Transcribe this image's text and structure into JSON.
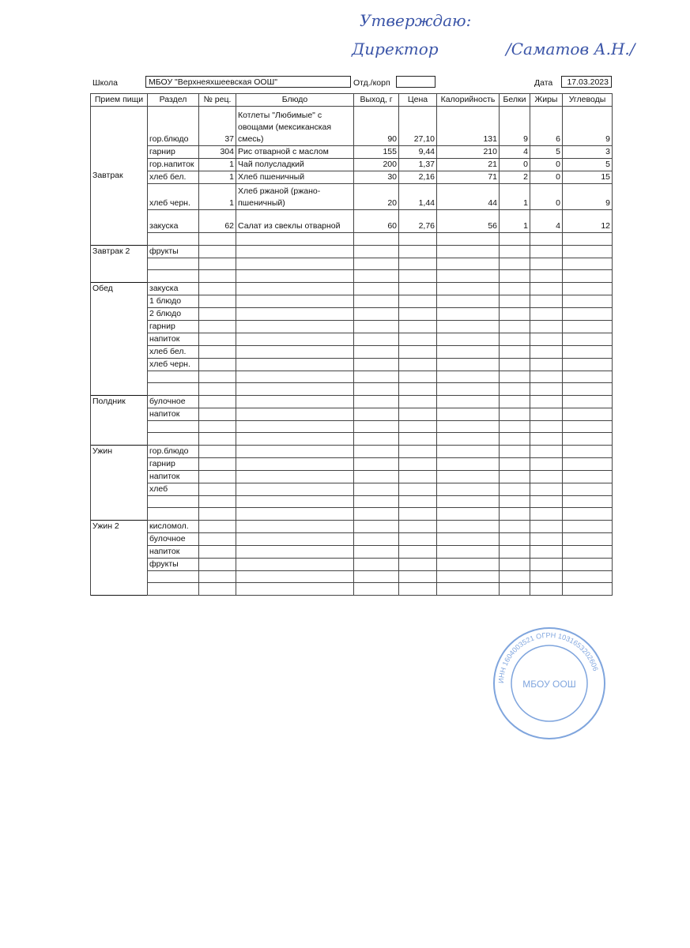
{
  "approval": {
    "line1": "Утверждаю:",
    "line2": "Директор",
    "name": "/Саматов А.Н./"
  },
  "stamp": {
    "center": "МБОУ ООШ",
    "ring_text": "ИНН 1604003521 ОГРН 1031653202606",
    "color": "#4a7fd0"
  },
  "header": {
    "school_label": "Школа",
    "school_value": "МБОУ \"Верхнеяхшеевская ООШ\"",
    "dept_label": "Отд./корп",
    "dept_value": "",
    "date_label": "Дата",
    "date_value": "17.03.2023"
  },
  "columns": [
    "Прием пищи",
    "Раздел",
    "№ рец.",
    "Блюдо",
    "Выход, г",
    "Цена",
    "Калорийность",
    "Белки",
    "Жиры",
    "Углеводы"
  ],
  "sections": [
    {
      "meal": "Завтрак",
      "rows": [
        {
          "section": "гор.блюдо",
          "recipe": "37",
          "dish": "Котлеты \"Любимые\" с овощами (мексиканская смесь)",
          "weight": "90",
          "price": "27,10",
          "kcal": "131",
          "protein": "9",
          "fat": "6",
          "carbs": "9",
          "h": 50
        },
        {
          "section": "гарнир",
          "recipe": "304",
          "dish": "Рис отварной с маслом",
          "weight": "155",
          "price": "9,44",
          "kcal": "210",
          "protein": "4",
          "fat": "5",
          "carbs": "3"
        },
        {
          "section": "гор.напиток",
          "recipe": "1",
          "dish": "Чай полусладкий",
          "weight": "200",
          "price": "1,37",
          "kcal": "21",
          "protein": "0",
          "fat": "0",
          "carbs": "5"
        },
        {
          "section": "хлеб бел.",
          "recipe": "1",
          "dish": "Хлеб пшеничный",
          "weight": "30",
          "price": "2,16",
          "kcal": "71",
          "protein": "2",
          "fat": "0",
          "carbs": "15"
        },
        {
          "section": "хлеб черн.",
          "recipe": "1",
          "dish": "Хлеб ржаной (ржано-пшеничный)",
          "weight": "20",
          "price": "1,44",
          "kcal": "44",
          "protein": "1",
          "fat": "0",
          "carbs": "9",
          "h": 33
        },
        {
          "section": "закуска",
          "recipe": "62",
          "dish": "Салат из свеклы отварной",
          "weight": "60",
          "price": "2,76",
          "kcal": "56",
          "protein": "1",
          "fat": "4",
          "carbs": "12",
          "h": 29
        },
        {
          "section": ""
        }
      ]
    },
    {
      "meal": "Завтрак 2",
      "rows": [
        {
          "section": "фрукты"
        },
        {
          "section": ""
        },
        {
          "section": ""
        }
      ]
    },
    {
      "meal": "Обед",
      "rows": [
        {
          "section": "закуска"
        },
        {
          "section": "1 блюдо"
        },
        {
          "section": "2 блюдо"
        },
        {
          "section": "гарнир"
        },
        {
          "section": "напиток"
        },
        {
          "section": "хлеб бел."
        },
        {
          "section": "хлеб черн."
        },
        {
          "section": ""
        },
        {
          "section": ""
        }
      ]
    },
    {
      "meal": "Полдник",
      "rows": [
        {
          "section": "булочное"
        },
        {
          "section": "напиток"
        },
        {
          "section": ""
        },
        {
          "section": ""
        }
      ]
    },
    {
      "meal": "Ужин",
      "rows": [
        {
          "section": "гор.блюдо"
        },
        {
          "section": "гарнир"
        },
        {
          "section": "напиток"
        },
        {
          "section": "хлеб"
        },
        {
          "section": ""
        },
        {
          "section": ""
        }
      ]
    },
    {
      "meal": "Ужин 2",
      "rows": [
        {
          "section": "кисломол."
        },
        {
          "section": "булочное"
        },
        {
          "section": "напиток"
        },
        {
          "section": "фрукты"
        },
        {
          "section": ""
        },
        {
          "section": ""
        }
      ]
    }
  ]
}
